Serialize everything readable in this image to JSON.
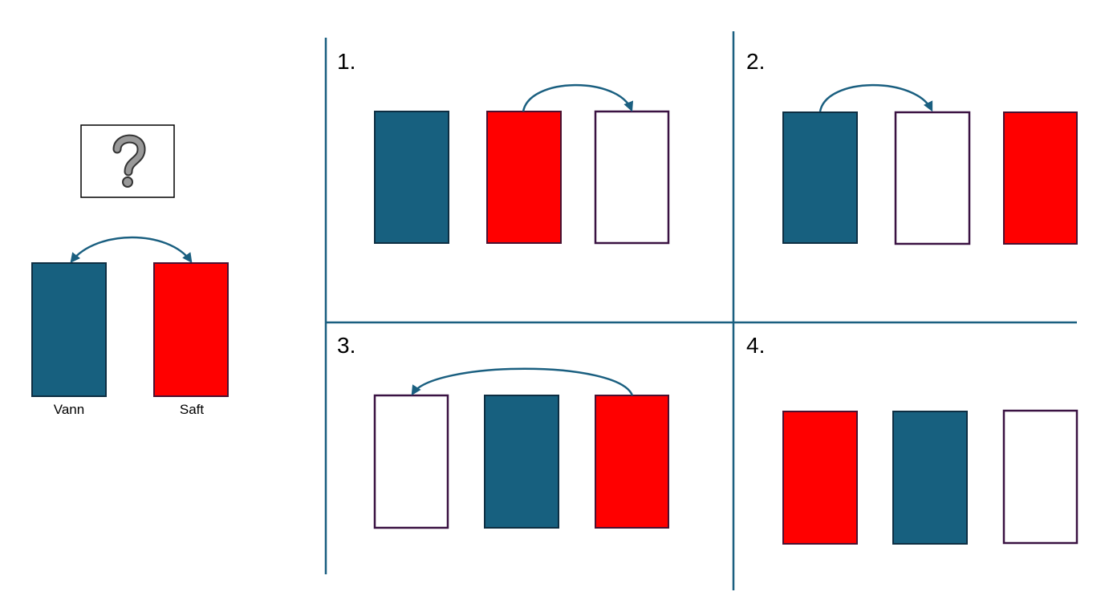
{
  "colors": {
    "water": "#17607f",
    "juice": "#ff0000",
    "empty": "#ffffff",
    "water_border": "#0d2e42",
    "juice_border": "#4a1030",
    "empty_border": "#3a1242",
    "arrow": "#1a5f80",
    "divider": "#1a5f80"
  },
  "icons": {
    "question": "question-mark-icon"
  },
  "intro": {
    "labels": [
      "Vann",
      "Saft"
    ]
  },
  "options": [
    {
      "number": "1."
    },
    {
      "number": "2."
    },
    {
      "number": "3."
    },
    {
      "number": "4."
    }
  ]
}
